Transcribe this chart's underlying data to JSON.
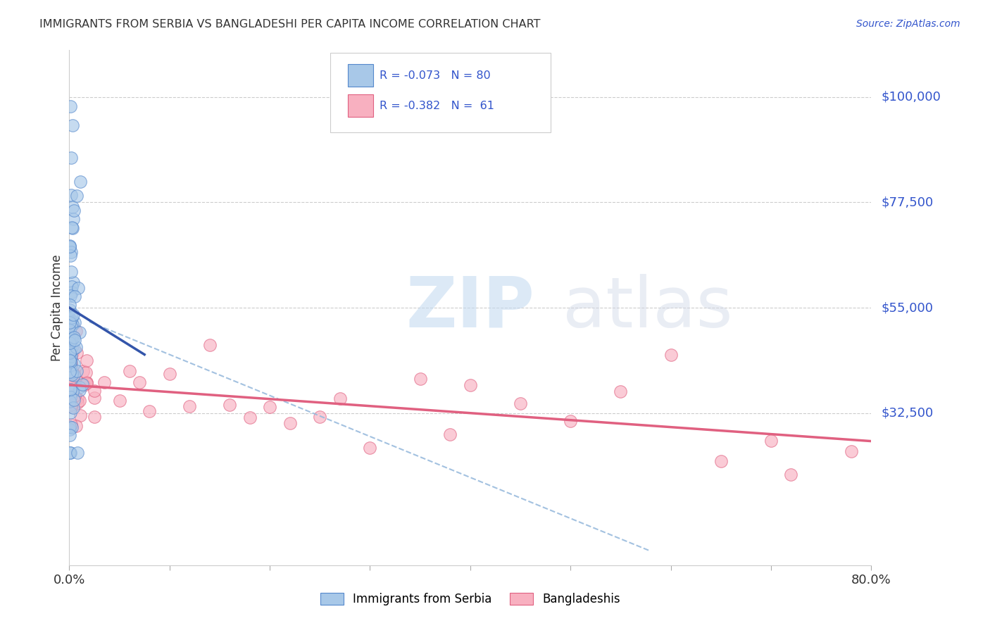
{
  "title": "IMMIGRANTS FROM SERBIA VS BANGLADESHI PER CAPITA INCOME CORRELATION CHART",
  "source": "Source: ZipAtlas.com",
  "ylabel": "Per Capita Income",
  "xlim": [
    0.0,
    0.8
  ],
  "ylim": [
    0,
    110000
  ],
  "ytick_vals": [
    32500,
    55000,
    77500,
    100000
  ],
  "ytick_labels": [
    "$32,500",
    "$55,000",
    "$77,500",
    "$100,000"
  ],
  "watermark_zip": "ZIP",
  "watermark_atlas": "atlas",
  "blue_scatter_color": "#a8c8e8",
  "blue_edge_color": "#5588cc",
  "pink_scatter_color": "#f8b0c0",
  "pink_edge_color": "#e06080",
  "blue_line_color": "#3355aa",
  "pink_line_color": "#e06080",
  "dashed_line_color": "#99bbdd",
  "legend_box_edge": "#cccccc",
  "blue_patch_color": "#a8c8e8",
  "pink_patch_color": "#f8b0c0",
  "text_blue": "#3355cc",
  "text_dark": "#333333",
  "serbia_seed": 42,
  "bangladesh_seed": 99
}
